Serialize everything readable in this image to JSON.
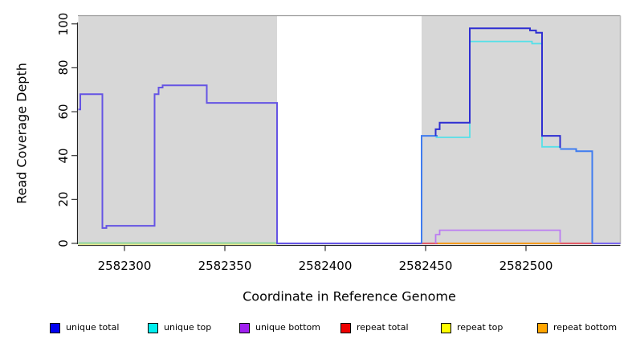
{
  "figure": {
    "y_axis_label": "Read Coverage Depth",
    "x_axis_label": "Coordinate in Reference Genome"
  },
  "legend": {
    "items": [
      {
        "label": "unique total",
        "color": "#0000f0"
      },
      {
        "label": "unique top",
        "color": "#00eeee"
      },
      {
        "label": "unique bottom",
        "color": "#a020f0"
      },
      {
        "label": "repeat total",
        "color": "#ee0000"
      },
      {
        "label": "repeat top",
        "color": "#ffff00"
      },
      {
        "label": "repeat bottom",
        "color": "#ffa500"
      }
    ]
  },
  "chart_data": {
    "type": "line",
    "subtype": "step-coverage",
    "title": "",
    "xlabel": "Coordinate in Reference Genome",
    "ylabel": "Read Coverage Depth",
    "xlim": [
      2582277,
      2582547
    ],
    "ylim": [
      0,
      104
    ],
    "x_ticks": [
      2582300,
      2582350,
      2582400,
      2582450,
      2582500
    ],
    "y_ticks": [
      0,
      20,
      40,
      60,
      80,
      100
    ],
    "grid": false,
    "legend_position": "bottom",
    "background_regions": [
      {
        "name": "shaded-region-left",
        "x": [
          2582277,
          2582376
        ],
        "fill": "#d7d7d7"
      },
      {
        "name": "gap-region-middle",
        "x": [
          2582376,
          2582448
        ],
        "fill": "#ffffff"
      },
      {
        "name": "shaded-region-right",
        "x": [
          2582448,
          2582547
        ],
        "fill": "#d7d7d7"
      }
    ],
    "series": [
      {
        "name": "repeat-top-baseline-left",
        "color": "#e8e88e",
        "width": 1.5,
        "dy": 1.4,
        "points": [
          [
            2582277,
            0
          ],
          [
            2582376,
            0
          ]
        ]
      },
      {
        "name": "unique-top-baseline-left",
        "color": "#7fd492",
        "width": 1.6,
        "dy": -0.4,
        "points": [
          [
            2582277,
            0
          ],
          [
            2582376,
            0
          ]
        ]
      },
      {
        "name": "repeat-total-baseline-a",
        "color": "#e25c68",
        "width": 2,
        "dy": 0,
        "points": [
          [
            2582448,
            0
          ],
          [
            2582457,
            0
          ]
        ]
      },
      {
        "name": "repeat-total-baseline-b",
        "color": "#e25c68",
        "width": 2,
        "dy": 0,
        "points": [
          [
            2582517,
            0
          ],
          [
            2582534,
            0
          ]
        ]
      },
      {
        "name": "repeat-bottom-line",
        "color": "#f49b1f",
        "width": 2,
        "dy": 0,
        "points": [
          [
            2582456,
            0
          ],
          [
            2582517,
            0
          ]
        ]
      },
      {
        "name": "unique-bottom-line-right",
        "color": "#bb7cf2",
        "width": 1.8,
        "dy": 0,
        "points": [
          [
            2582455,
            0
          ],
          [
            2582455,
            4
          ],
          [
            2582457,
            4
          ],
          [
            2582457,
            6
          ],
          [
            2582517,
            6
          ],
          [
            2582517,
            0.5
          ]
        ]
      },
      {
        "name": "baseline-right-end",
        "color": "#7b68ee",
        "width": 2,
        "dy": 0,
        "points": [
          [
            2582533,
            0
          ],
          [
            2582547,
            0
          ]
        ]
      },
      {
        "name": "unique-total-left",
        "color": "#6554e4",
        "width": 2,
        "dy": 0,
        "points": [
          [
            2582277,
            61
          ],
          [
            2582278,
            61
          ],
          [
            2582278,
            68
          ],
          [
            2582289,
            68
          ],
          [
            2582289,
            7
          ],
          [
            2582291,
            7
          ],
          [
            2582291,
            8
          ],
          [
            2582315,
            8
          ],
          [
            2582315,
            68
          ],
          [
            2582317,
            68
          ],
          [
            2582317,
            71
          ],
          [
            2582319,
            71
          ],
          [
            2582319,
            72
          ],
          [
            2582341,
            72
          ],
          [
            2582341,
            64
          ],
          [
            2582376,
            64
          ],
          [
            2582376,
            0
          ],
          [
            2582448,
            0
          ]
        ]
      },
      {
        "name": "unique-total-top-blend-a",
        "color": "#3f7cf0",
        "width": 2,
        "dy": 0,
        "points": [
          [
            2582448,
            0
          ],
          [
            2582448,
            49
          ],
          [
            2582456,
            49
          ]
        ]
      },
      {
        "name": "unique-total-top-blend-b",
        "color": "#3f7cf0",
        "width": 2,
        "dy": 0,
        "points": [
          [
            2582517,
            43
          ],
          [
            2582525,
            43
          ],
          [
            2582525,
            42
          ],
          [
            2582533,
            42
          ],
          [
            2582533,
            0
          ]
        ]
      },
      {
        "name": "unique-top-line-right",
        "color": "#55e0e8",
        "width": 1.8,
        "dy": 0,
        "points": [
          [
            2582455,
            48.3
          ],
          [
            2582472,
            48.3
          ],
          [
            2582472,
            92
          ],
          [
            2582503,
            92
          ],
          [
            2582503,
            91
          ],
          [
            2582508,
            91
          ],
          [
            2582508,
            44
          ],
          [
            2582517,
            44
          ],
          [
            2582517,
            43.3
          ]
        ]
      },
      {
        "name": "unique-total-line-right",
        "color": "#2e2ed2",
        "width": 2,
        "dy": 0,
        "points": [
          [
            2582455,
            49
          ],
          [
            2582455,
            52
          ],
          [
            2582457,
            52
          ],
          [
            2582457,
            55
          ],
          [
            2582472,
            55
          ],
          [
            2582472,
            98
          ],
          [
            2582502,
            98
          ],
          [
            2582502,
            97
          ],
          [
            2582505,
            97
          ],
          [
            2582505,
            96
          ],
          [
            2582508,
            96
          ],
          [
            2582508,
            49
          ],
          [
            2582517,
            49
          ],
          [
            2582517,
            43.5
          ]
        ]
      }
    ]
  },
  "axis_style": {
    "axis_color": "#222222",
    "box_top_color": "#9c9c9c",
    "box_right_color": "#bcbcbc",
    "tick_color": "#333333"
  }
}
